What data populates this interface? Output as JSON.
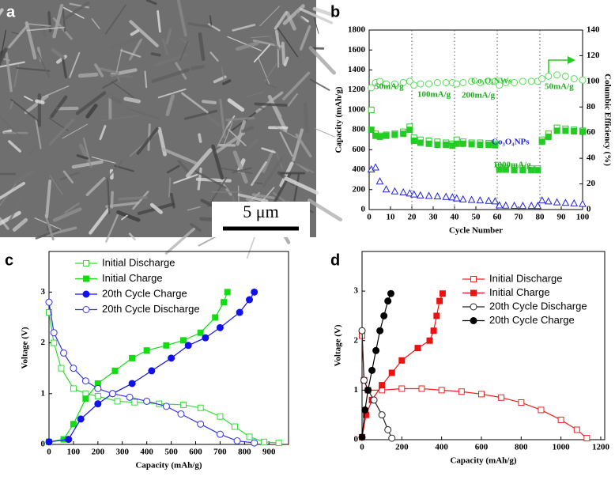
{
  "chart_data": [
    {
      "type": "image",
      "label": "a",
      "scale_bar": "5 μm"
    },
    {
      "type": "scatter",
      "label": "b",
      "xlabel": "Cycle Number",
      "ylabel": "Capacity (mAh/g)",
      "y2label": "Columbic Efficiency (%)",
      "xlim": [
        0,
        100
      ],
      "ylim": [
        0,
        1800
      ],
      "y2lim": [
        0,
        140
      ],
      "xticks": [
        0,
        10,
        20,
        30,
        40,
        50,
        60,
        70,
        80,
        90,
        100
      ],
      "yticks": [
        0,
        200,
        400,
        600,
        800,
        1000,
        1200,
        1400,
        1600,
        1800
      ],
      "y2ticks": [
        0,
        20,
        40,
        60,
        80,
        100,
        120,
        140
      ],
      "dividers": [
        20,
        40,
        60,
        80
      ],
      "x": [
        1,
        3,
        5,
        8,
        12,
        16,
        19,
        21,
        24,
        28,
        32,
        36,
        39,
        41,
        44,
        48,
        52,
        56,
        59,
        61,
        64,
        68,
        72,
        76,
        79,
        81,
        84,
        88,
        92,
        96,
        100
      ],
      "series": [
        {
          "color": "#22cc22",
          "marker": "square-open",
          "values": [
            1000,
            760,
            740,
            750,
            760,
            780,
            830,
            720,
            700,
            690,
            680,
            670,
            660,
            700,
            680,
            670,
            670,
            665,
            660,
            420,
            415,
            410,
            410,
            410,
            410,
            700,
            760,
            820,
            810,
            800,
            790
          ]
        },
        {
          "color": "#22cc22",
          "marker": "square",
          "values": [
            800,
            740,
            730,
            740,
            750,
            760,
            800,
            690,
            670,
            660,
            650,
            650,
            640,
            660,
            660,
            655,
            650,
            650,
            645,
            400,
            400,
            395,
            395,
            395,
            395,
            680,
            730,
            790,
            790,
            785,
            780
          ]
        },
        {
          "color": "#55dd55",
          "marker": "circle-open",
          "axis": "y2",
          "values": [
            95,
            99,
            100,
            98,
            98,
            99,
            100,
            97,
            98,
            98,
            99,
            99,
            99,
            98,
            99,
            100,
            99,
            100,
            100,
            97,
            99,
            99,
            100,
            100,
            100,
            102,
            104,
            105,
            104,
            102,
            101
          ]
        },
        {
          "color": "#2222dd",
          "marker": "triangle-open",
          "values": [
            400,
            420,
            280,
            200,
            180,
            170,
            160,
            150,
            140,
            135,
            130,
            125,
            120,
            110,
            100,
            95,
            90,
            85,
            80,
            40,
            38,
            36,
            35,
            35,
            34,
            90,
            80,
            70,
            65,
            60,
            55
          ]
        }
      ],
      "annotations": [
        {
          "text": "50mA/g",
          "color": "#22aa22"
        },
        {
          "text": "100mA/g",
          "color": "#22aa22"
        },
        {
          "text": "200mA/g",
          "color": "#22aa22"
        },
        {
          "text": "1000mA/g",
          "color": "#22aa22"
        },
        {
          "text": "50mA/g",
          "color": "#22aa22"
        },
        {
          "text": "Co₃O₄NWs",
          "color": "#22cc22"
        },
        {
          "text": "Co₃O₄NPs",
          "color": "#2222dd"
        }
      ]
    },
    {
      "type": "line",
      "label": "c",
      "xlabel": "Capacity (mAh/g)",
      "ylabel": "Voltage (V)",
      "xlim": [
        0,
        980
      ],
      "ylim": [
        0,
        3.8
      ],
      "xticks": [
        0,
        100,
        200,
        300,
        400,
        500,
        600,
        700,
        800,
        900
      ],
      "yticks": [
        0,
        1,
        2,
        3
      ],
      "series": [
        {
          "name": "Initial Discharge",
          "color": "#33dd33",
          "marker": "square-open",
          "x": [
            0,
            20,
            50,
            100,
            150,
            200,
            280,
            350,
            450,
            550,
            620,
            700,
            760,
            820,
            880,
            940
          ],
          "values": [
            2.6,
            2.0,
            1.5,
            1.1,
            1.0,
            0.95,
            0.85,
            0.83,
            0.8,
            0.78,
            0.72,
            0.55,
            0.35,
            0.15,
            0.05,
            0.03
          ]
        },
        {
          "name": "Initial Charge",
          "color": "#11dd11",
          "marker": "square",
          "x": [
            0,
            60,
            100,
            150,
            200,
            270,
            340,
            400,
            480,
            550,
            620,
            680,
            715,
            730
          ],
          "values": [
            0.05,
            0.1,
            0.4,
            0.9,
            1.2,
            1.45,
            1.7,
            1.85,
            1.95,
            2.05,
            2.2,
            2.5,
            2.8,
            3.0
          ]
        },
        {
          "name": "20th Cycle Charge",
          "color": "#1111ee",
          "marker": "circle",
          "x": [
            0,
            80,
            130,
            200,
            260,
            340,
            420,
            500,
            570,
            640,
            700,
            780,
            820,
            840
          ],
          "values": [
            0.05,
            0.1,
            0.5,
            0.8,
            1.0,
            1.2,
            1.45,
            1.7,
            1.95,
            2.1,
            2.3,
            2.6,
            2.85,
            3.0
          ]
        },
        {
          "name": "20th Cycle Discharge",
          "color": "#3333ee",
          "marker": "circle-open",
          "x": [
            0,
            20,
            60,
            100,
            150,
            200,
            260,
            330,
            400,
            480,
            540,
            620,
            700,
            770,
            840
          ],
          "values": [
            2.8,
            2.2,
            1.8,
            1.5,
            1.25,
            1.1,
            1.0,
            0.93,
            0.85,
            0.75,
            0.6,
            0.4,
            0.2,
            0.07,
            0.03
          ]
        }
      ]
    },
    {
      "type": "line",
      "label": "d",
      "xlabel": "Capacity (mAh/g)",
      "ylabel": "Voltage (V)",
      "xlim": [
        0,
        1220
      ],
      "ylim": [
        0,
        3.8
      ],
      "xticks": [
        0,
        200,
        400,
        600,
        800,
        1000,
        1200
      ],
      "yticks": [
        0,
        1,
        2,
        3
      ],
      "series": [
        {
          "name": "Initial Discharge",
          "color": "#ee2222",
          "marker": "square-open",
          "x": [
            0,
            10,
            30,
            100,
            200,
            300,
            400,
            500,
            600,
            700,
            800,
            900,
            1000,
            1080,
            1130
          ],
          "values": [
            2.1,
            1.2,
            1.0,
            1.0,
            1.03,
            1.03,
            1.0,
            0.97,
            0.92,
            0.85,
            0.75,
            0.6,
            0.4,
            0.2,
            0.03
          ]
        },
        {
          "name": "Initial Charge",
          "color": "#ee1111",
          "marker": "square",
          "x": [
            0,
            20,
            50,
            100,
            150,
            200,
            280,
            340,
            360,
            375,
            390,
            405
          ],
          "values": [
            0.05,
            0.5,
            0.8,
            1.1,
            1.35,
            1.6,
            1.85,
            2.0,
            2.2,
            2.5,
            2.8,
            2.95
          ]
        },
        {
          "name": "20th Cycle Discharge",
          "color": "#222222",
          "marker": "circle-open",
          "x": [
            0,
            10,
            30,
            60,
            100,
            130,
            150
          ],
          "values": [
            2.2,
            1.2,
            1.0,
            0.8,
            0.5,
            0.2,
            0.03
          ]
        },
        {
          "name": "20th Cycle Charge",
          "color": "#000000",
          "marker": "circle",
          "x": [
            0,
            15,
            30,
            50,
            70,
            90,
            110,
            130,
            145
          ],
          "values": [
            0.05,
            0.6,
            1.0,
            1.4,
            1.8,
            2.2,
            2.5,
            2.8,
            2.95
          ]
        }
      ]
    }
  ]
}
